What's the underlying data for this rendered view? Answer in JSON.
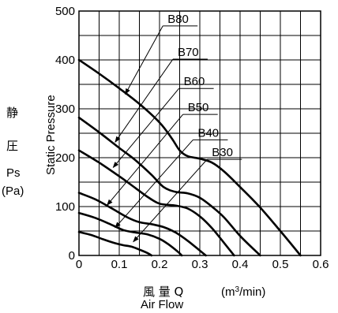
{
  "chart_data": {
    "type": "line",
    "xlabel_cjk": "風 量 Q",
    "xlabel_unit_prefix": "(m",
    "xlabel_unit_sup": "3",
    "xlabel_unit_suffix": "/min)",
    "xlabel_en": "Air Flow",
    "ylabel_cjk_1": "静",
    "ylabel_cjk_2": "圧",
    "ylabel_symbol": "Ps",
    "ylabel_unit": "(Pa)",
    "ylabel_en": "Static Pressure",
    "xlim": [
      0,
      0.6
    ],
    "ylim": [
      0,
      500
    ],
    "xticks": [
      0,
      0.1,
      0.2,
      0.3,
      0.4,
      0.5,
      0.6
    ],
    "xtick_labels": [
      "0",
      "0.1",
      "0.2",
      "0.3",
      "0.4",
      "0.5",
      "0.6"
    ],
    "yticks": [
      0,
      100,
      200,
      300,
      400,
      500
    ],
    "ytick_labels": [
      "0",
      "100",
      "200",
      "300",
      "400",
      "500"
    ],
    "grid": true,
    "series": [
      {
        "name": "B80",
        "points": [
          [
            0,
            400
          ],
          [
            0.05,
            372
          ],
          [
            0.1,
            342
          ],
          [
            0.15,
            310
          ],
          [
            0.2,
            272
          ],
          [
            0.23,
            240
          ],
          [
            0.25,
            215
          ],
          [
            0.27,
            203
          ],
          [
            0.3,
            198
          ],
          [
            0.33,
            190
          ],
          [
            0.36,
            172
          ],
          [
            0.4,
            140
          ],
          [
            0.45,
            98
          ],
          [
            0.5,
            50
          ],
          [
            0.55,
            0
          ]
        ],
        "label_anchor": [
          0.115,
          330
        ]
      },
      {
        "name": "B70",
        "points": [
          [
            0,
            282
          ],
          [
            0.05,
            252
          ],
          [
            0.1,
            220
          ],
          [
            0.14,
            195
          ],
          [
            0.18,
            165
          ],
          [
            0.21,
            140
          ],
          [
            0.24,
            130
          ],
          [
            0.27,
            127
          ],
          [
            0.3,
            118
          ],
          [
            0.33,
            100
          ],
          [
            0.36,
            78
          ],
          [
            0.4,
            40
          ],
          [
            0.45,
            0
          ]
        ],
        "label_anchor": [
          0.09,
          232
        ]
      },
      {
        "name": "B60",
        "points": [
          [
            0,
            215
          ],
          [
            0.05,
            190
          ],
          [
            0.1,
            162
          ],
          [
            0.14,
            138
          ],
          [
            0.17,
            120
          ],
          [
            0.2,
            106
          ],
          [
            0.24,
            102
          ],
          [
            0.27,
            96
          ],
          [
            0.3,
            80
          ],
          [
            0.33,
            56
          ],
          [
            0.36,
            26
          ],
          [
            0.385,
            0
          ]
        ],
        "label_anchor": [
          0.085,
          180
        ]
      },
      {
        "name": "B50",
        "points": [
          [
            0,
            128
          ],
          [
            0.04,
            115
          ],
          [
            0.08,
            97
          ],
          [
            0.12,
            78
          ],
          [
            0.15,
            68
          ],
          [
            0.18,
            64
          ],
          [
            0.21,
            58
          ],
          [
            0.24,
            47
          ],
          [
            0.27,
            30
          ],
          [
            0.3,
            10
          ],
          [
            0.315,
            0
          ]
        ],
        "label_anchor": [
          0.07,
          103
        ]
      },
      {
        "name": "B40",
        "points": [
          [
            0,
            87
          ],
          [
            0.04,
            77
          ],
          [
            0.08,
            63
          ],
          [
            0.11,
            52
          ],
          [
            0.14,
            47
          ],
          [
            0.17,
            43
          ],
          [
            0.2,
            34
          ],
          [
            0.22,
            24
          ],
          [
            0.245,
            8
          ],
          [
            0.255,
            0
          ]
        ],
        "label_anchor": [
          0.09,
          57
        ]
      },
      {
        "name": "B30",
        "points": [
          [
            0,
            48
          ],
          [
            0.03,
            42
          ],
          [
            0.06,
            33
          ],
          [
            0.09,
            25
          ],
          [
            0.11,
            21
          ],
          [
            0.13,
            18
          ],
          [
            0.15,
            12
          ],
          [
            0.17,
            5
          ],
          [
            0.18,
            0
          ]
        ],
        "label_anchor": [
          0.135,
          28
        ]
      }
    ],
    "legend_labels": [
      {
        "name": "B80",
        "text_pos": [
          0.22,
          476
        ]
      },
      {
        "name": "B70",
        "text_pos": [
          0.245,
          408
        ]
      },
      {
        "name": "B60",
        "text_pos": [
          0.26,
          348
        ]
      },
      {
        "name": "B50",
        "text_pos": [
          0.27,
          295
        ]
      },
      {
        "name": "B40",
        "text_pos": [
          0.295,
          243
        ]
      },
      {
        "name": "B30",
        "text_pos": [
          0.33,
          203
        ]
      }
    ]
  }
}
